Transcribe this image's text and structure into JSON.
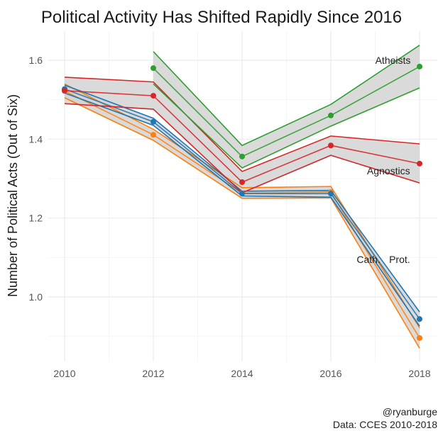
{
  "chart_data": {
    "type": "line",
    "title": "Political Activity Has Shifted Rapidly Since 2016",
    "xlabel": "",
    "ylabel": "Number of Political Acts (Out of Six)",
    "x": [
      2010,
      2012,
      2014,
      2016,
      2018
    ],
    "xticks": [
      "2010",
      "2012",
      "2014",
      "2016",
      "2018"
    ],
    "yticks": [
      "1.0",
      "1.2",
      "1.4",
      "1.6"
    ],
    "ytick_values": [
      1.0,
      1.2,
      1.4,
      1.6
    ],
    "xlim": [
      2009.7,
      2018.5
    ],
    "ylim": [
      0.84,
      1.67
    ],
    "grid": true,
    "ribbon_color": "#d3d3d3",
    "series": [
      {
        "name": "Atheists",
        "color": "#2ca02c",
        "x": [
          2012,
          2014,
          2016,
          2018
        ],
        "values": [
          1.58,
          1.356,
          1.46,
          1.584
        ],
        "upper": [
          1.622,
          1.384,
          1.488,
          1.638
        ],
        "lower": [
          1.54,
          1.327,
          1.433,
          1.53
        ]
      },
      {
        "name": "Agnostics",
        "color": "#d62728",
        "x": [
          2010,
          2012,
          2014,
          2016,
          2018
        ],
        "values": [
          1.523,
          1.51,
          1.291,
          1.384,
          1.338
        ],
        "upper": [
          1.557,
          1.545,
          1.318,
          1.408,
          1.388
        ],
        "lower": [
          1.49,
          1.476,
          1.264,
          1.359,
          1.289
        ]
      },
      {
        "name": "Prot.",
        "color": "#1f77b4",
        "x": [
          2010,
          2012,
          2014,
          2016,
          2018
        ],
        "values": [
          1.527,
          1.444,
          1.262,
          1.262,
          0.944
        ],
        "upper": [
          1.537,
          1.453,
          1.268,
          1.27,
          0.962
        ],
        "lower": [
          1.517,
          1.435,
          1.256,
          1.253,
          0.926
        ]
      },
      {
        "name": "Cath.",
        "color": "#ff7f0e",
        "x": [
          2010,
          2012,
          2014,
          2016,
          2018
        ],
        "values": [
          1.522,
          1.411,
          1.263,
          1.266,
          0.896
        ],
        "upper": [
          1.54,
          1.425,
          1.277,
          1.28,
          0.922
        ],
        "lower": [
          1.505,
          1.397,
          1.25,
          1.251,
          0.87
        ]
      }
    ],
    "annotations": [
      {
        "text": "Atheists",
        "x": 2017.4,
        "y": 1.6
      },
      {
        "text": "Agnostics",
        "x": 2017.3,
        "y": 1.32
      },
      {
        "text": "Cath.",
        "x": 2016.85,
        "y": 1.095
      },
      {
        "text": "Prot.",
        "x": 2017.55,
        "y": 1.095
      }
    ],
    "caption": [
      "@ryanburge",
      "Data: CCES 2010-2018"
    ]
  }
}
